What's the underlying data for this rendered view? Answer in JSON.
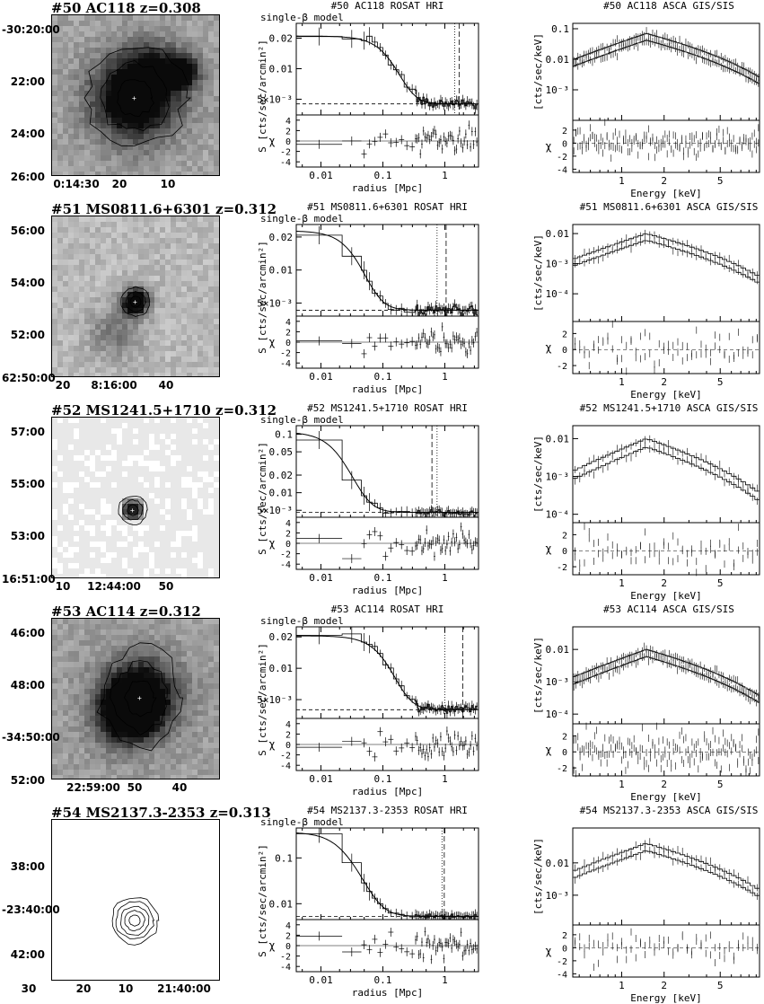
{
  "chart_data": [
    {
      "type": "panel-row",
      "id": 50,
      "image": {
        "title": "#50 AC118 z=0.308",
        "dec_labels": [
          "-30:20:00",
          "22:00",
          "24:00",
          "26:00"
        ],
        "ra_labels": [
          "0:14:30",
          "20",
          "10"
        ]
      },
      "profile": {
        "title": "#50 AC118 ROSAT HRI",
        "model_label": "single-β model",
        "ylabel": "S [cts/sec/arcmin²]",
        "yticks": [
          "0.02",
          "0.01",
          "5×10⁻³"
        ],
        "ytick_values": [
          0.02,
          0.01,
          0.005
        ],
        "ylim": [
          0.0035,
          0.028
        ],
        "xlabel": "radius [Mpc]",
        "xticks": [
          "0.01",
          "0.1",
          "1"
        ],
        "xlim": [
          0.004,
          3.5
        ],
        "model": {
          "S0": 0.0165,
          "rc": 0.2,
          "beta": 0.9,
          "bg": 0.0045
        },
        "background_level": 0.0045,
        "vlines": {
          "dotted": 1.45,
          "dashed": 1.7
        },
        "resid_label": "χ",
        "resid_ticks": [
          "4",
          "2",
          "0",
          "-2",
          "-4"
        ],
        "resid_ylim": [
          -5,
          5
        ]
      },
      "spectrum": {
        "title": "#50 AC118 ASCA GIS/SIS",
        "ylabel": "[cts/sec/keV]",
        "yticks": [
          "0.1",
          "0.01",
          "10⁻³"
        ],
        "ytick_values": [
          0.1,
          0.01,
          0.001
        ],
        "ylim": [
          0.0001,
          0.15
        ],
        "xlabel": "Energy [keV]",
        "xticks": [
          "1",
          "2",
          "5"
        ],
        "xlim": [
          0.45,
          9.5
        ],
        "resid_label": "χ",
        "resid_ticks": [
          "2",
          "0",
          "-2",
          "-4"
        ],
        "resid_ylim": [
          -4.5,
          3.5
        ]
      }
    },
    {
      "type": "panel-row",
      "id": 51,
      "image": {
        "title": "#51 MS0811.6+6301 z=0.312",
        "dec_labels": [
          "56:00",
          "54:00",
          "52:00",
          "62:50:00"
        ],
        "ra_labels": [
          "20",
          "8:16:00",
          "40"
        ]
      },
      "profile": {
        "title": "#51 MS0811.6+6301 ROSAT HRI",
        "model_label": "single-β model",
        "ylabel": "S [cts/sec/arcmin²]",
        "yticks": [
          "0.02",
          "0.01",
          "5×10⁻³"
        ],
        "ytick_values": [
          0.02,
          0.01,
          0.005
        ],
        "ylim": [
          0.0038,
          0.026
        ],
        "xlabel": "radius [Mpc]",
        "xticks": [
          "0.01",
          "0.1",
          "1"
        ],
        "xlim": [
          0.004,
          3.5
        ],
        "model": {
          "S0": 0.0185,
          "rc": 0.05,
          "beta": 0.8,
          "bg": 0.0043
        },
        "background_level": 0.0043,
        "vlines": {
          "dotted": 0.75,
          "dashed": 1.05
        },
        "resid_label": "χ",
        "resid_ticks": [
          "4",
          "2",
          "0",
          "-2",
          "-4"
        ],
        "resid_ylim": [
          -5,
          5
        ]
      },
      "spectrum": {
        "title": "#51 MS0811.6+6301 ASCA GIS/SIS",
        "ylabel": "[cts/sec/keV]",
        "yticks": [
          "0.01",
          "10⁻³",
          "10⁻⁴"
        ],
        "ytick_values": [
          0.01,
          0.001,
          0.0001
        ],
        "ylim": [
          1.2e-05,
          0.02
        ],
        "xlabel": "Energy [keV]",
        "xticks": [
          "1",
          "2",
          "5"
        ],
        "xlim": [
          0.45,
          9.5
        ],
        "resid_label": "χ",
        "resid_ticks": [
          "2",
          "0",
          "-2"
        ],
        "resid_ylim": [
          -3,
          3.5
        ]
      }
    },
    {
      "type": "panel-row",
      "id": 52,
      "image": {
        "title": "#52 MS1241.5+1710 z=0.312",
        "dec_labels": [
          "57:00",
          "55:00",
          "53:00",
          "16:51:00"
        ],
        "ra_labels": [
          "10",
          "12:44:00",
          "50"
        ]
      },
      "profile": {
        "title": "#52 MS1241.5+1710 ROSAT HRI",
        "model_label": "single-β model",
        "ylabel": "S [cts/sec/arcmin²]",
        "yticks": [
          "0.1",
          "0.05",
          "0.02",
          "0.01",
          "5×10⁻³"
        ],
        "ytick_values": [
          0.1,
          0.05,
          0.02,
          0.01,
          0.005
        ],
        "ylim": [
          0.0038,
          0.14
        ],
        "xlabel": "radius [Mpc]",
        "xticks": [
          "0.01",
          "0.1",
          "1"
        ],
        "xlim": [
          0.004,
          3.5
        ],
        "model": {
          "S0": 0.105,
          "rc": 0.022,
          "beta": 0.75,
          "bg": 0.0046
        },
        "background_level": 0.0046,
        "vlines": {
          "dotted": 0.75,
          "dashed": 0.62
        },
        "resid_label": "χ",
        "resid_ticks": [
          "4",
          "2",
          "0",
          "-2",
          "-4"
        ],
        "resid_ylim": [
          -5,
          5
        ]
      },
      "spectrum": {
        "title": "#52 MS1241.5+1710 ASCA GIS/SIS",
        "ylabel": "[cts/sec/keV]",
        "yticks": [
          "0.01",
          "10⁻³",
          "10⁻⁴"
        ],
        "ytick_values": [
          0.01,
          0.001,
          0.0001
        ],
        "ylim": [
          6e-05,
          0.022
        ],
        "xlabel": "Energy [keV]",
        "xticks": [
          "1",
          "2",
          "5"
        ],
        "xlim": [
          0.45,
          9.5
        ],
        "resid_label": "χ",
        "resid_ticks": [
          "2",
          "0",
          "-2"
        ],
        "resid_ylim": [
          -3,
          3.5
        ]
      }
    },
    {
      "type": "panel-row",
      "id": 53,
      "image": {
        "title": "#53 AC114 z=0.312",
        "dec_labels": [
          "46:00",
          "48:00",
          "-34:50:00",
          "52:00"
        ],
        "ra_labels": [
          "22:59:00",
          "50",
          "40"
        ]
      },
      "profile": {
        "title": "#53 AC114 ROSAT HRI",
        "model_label": "single-β model",
        "ylabel": "S [cts/sec/arcmin²]",
        "yticks": [
          "0.02",
          "0.01",
          "5×10⁻³"
        ],
        "ytick_values": [
          0.02,
          0.01,
          0.005
        ],
        "ylim": [
          0.0033,
          0.025
        ],
        "xlabel": "radius [Mpc]",
        "xticks": [
          "0.01",
          "0.1",
          "1"
        ],
        "xlim": [
          0.004,
          3.5
        ],
        "model": {
          "S0": 0.0165,
          "rc": 0.16,
          "beta": 0.85,
          "bg": 0.004
        },
        "background_level": 0.004,
        "vlines": {
          "dotted": 1.0,
          "dashed": 1.95
        },
        "resid_label": "χ",
        "resid_ticks": [
          "4",
          "2",
          "0",
          "-2",
          "-4"
        ],
        "resid_ylim": [
          -5,
          5
        ]
      },
      "spectrum": {
        "title": "#53 AC114 ASCA GIS/SIS",
        "ylabel": "[cts/sec/keV]",
        "yticks": [
          "0.01",
          "10⁻³",
          "10⁻⁴"
        ],
        "ytick_values": [
          0.01,
          0.001,
          0.0001
        ],
        "ylim": [
          5e-05,
          0.05
        ],
        "xlabel": "Energy [keV]",
        "xticks": [
          "1",
          "2",
          "5"
        ],
        "xlim": [
          0.45,
          9.5
        ],
        "resid_label": "χ",
        "resid_ticks": [
          "2",
          "0",
          "-2"
        ],
        "resid_ylim": [
          -3,
          3.5
        ]
      }
    },
    {
      "type": "panel-row",
      "id": 54,
      "image": {
        "title": "#54 MS2137.3-2353 z=0.313",
        "dec_labels": [
          "38:00",
          "-23:40:00",
          "42:00"
        ],
        "ra_labels": [
          "30",
          "20",
          "10",
          "21:40:00"
        ]
      },
      "profile": {
        "title": "#54 MS2137.3-2353 ROSAT HRI",
        "model_label": "single-β model",
        "ylabel": "S [cts/sec/arcmin²]",
        "yticks": [
          "0.1",
          "0.01"
        ],
        "ytick_values": [
          0.1,
          0.01
        ],
        "ylim": [
          0.0045,
          0.45
        ],
        "xlabel": "radius [Mpc]",
        "xticks": [
          "0.01",
          "0.1",
          "1"
        ],
        "xlim": [
          0.004,
          3.5
        ],
        "model": {
          "S0": 0.36,
          "rc": 0.025,
          "beta": 0.72,
          "bg": 0.0053
        },
        "background_level": 0.0053,
        "vlines": {
          "dotted": 0.9,
          "dashed": 0.98
        },
        "resid_label": "χ",
        "resid_ticks": [
          "4",
          "2",
          "0",
          "-2",
          "-4"
        ],
        "resid_ylim": [
          -5,
          5
        ]
      },
      "spectrum": {
        "title": "#54 MS2137.3-2353 ASCA GIS/SIS",
        "ylabel": "[cts/sec/keV]",
        "yticks": [
          "0.01",
          "10⁻³"
        ],
        "ytick_values": [
          0.01,
          0.001
        ],
        "ylim": [
          0.00012,
          0.12
        ],
        "xlabel": "Energy [keV]",
        "xticks": [
          "1",
          "2",
          "5"
        ],
        "xlim": [
          0.45,
          9.5
        ],
        "resid_label": "χ",
        "resid_ticks": [
          "2",
          "0",
          "-2",
          "-4"
        ],
        "resid_ylim": [
          -4.5,
          3.5
        ]
      }
    }
  ]
}
